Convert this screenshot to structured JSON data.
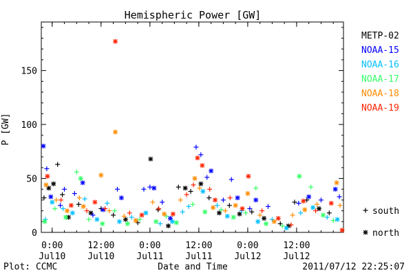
{
  "chart_data": {
    "type": "scatter",
    "title": "Hemispheric Power [GW]",
    "xlabel": "Date and Time",
    "ylabel": "P [GW]",
    "ylim": [
      0,
      195
    ],
    "xlim": [
      "2011-07-09T21:20",
      "2011-07-12T23:30"
    ],
    "y_ticks": [
      0,
      50,
      100,
      150
    ],
    "x_ticks": [
      {
        "time": "2011-07-10T00:00",
        "label": [
          "0:00",
          "Jul10"
        ]
      },
      {
        "time": "2011-07-10T12:00",
        "label": [
          "12:00",
          "Jul10"
        ]
      },
      {
        "time": "2011-07-11T00:00",
        "label": [
          "0:00",
          "Jul11"
        ]
      },
      {
        "time": "2011-07-11T12:00",
        "label": [
          "12:00",
          "Jul11"
        ]
      },
      {
        "time": "2011-07-12T00:00",
        "label": [
          "0:00",
          "Jul12"
        ]
      },
      {
        "time": "2011-07-12T12:00",
        "label": [
          "12:00",
          "Jul12"
        ]
      }
    ],
    "grid": false,
    "legend_position": "right",
    "markers": [
      {
        "symbol": "+",
        "label": "south"
      },
      {
        "symbol": "*",
        "label": "north"
      }
    ],
    "series": [
      {
        "name": "METP-02",
        "color": "#000000",
        "points": [
          [
            "2011-07-09T22:00",
            32,
            "s"
          ],
          [
            "2011-07-09T23:10",
            41,
            "n"
          ],
          [
            "2011-07-10T00:20",
            45,
            "n"
          ],
          [
            "2011-07-10T01:20",
            63,
            "s"
          ],
          [
            "2011-07-10T02:30",
            35,
            "s"
          ],
          [
            "2011-07-10T04:00",
            14,
            "n"
          ],
          [
            "2011-07-10T06:30",
            26,
            "s"
          ],
          [
            "2011-07-10T09:30",
            18,
            "n"
          ],
          [
            "2011-07-10T12:00",
            22,
            "s"
          ],
          [
            "2011-07-10T15:00",
            16,
            "s"
          ],
          [
            "2011-07-10T18:00",
            12,
            "n"
          ],
          [
            "2011-07-10T21:00",
            9,
            "s"
          ],
          [
            "2011-07-11T00:10",
            68,
            "n"
          ],
          [
            "2011-07-11T02:00",
            21,
            "s"
          ],
          [
            "2011-07-11T04:30",
            6,
            "n"
          ],
          [
            "2011-07-11T07:00",
            42,
            "s"
          ],
          [
            "2011-07-11T08:40",
            41,
            "n"
          ],
          [
            "2011-07-11T10:00",
            38,
            "s"
          ],
          [
            "2011-07-11T12:30",
            45,
            "n"
          ],
          [
            "2011-07-11T14:30",
            32,
            "s"
          ],
          [
            "2011-07-11T17:00",
            18,
            "n"
          ],
          [
            "2011-07-11T19:30",
            25,
            "s"
          ],
          [
            "2011-07-11T22:00",
            17,
            "n"
          ],
          [
            "2011-07-12T01:00",
            19,
            "s"
          ],
          [
            "2011-07-12T04:00",
            13,
            "n"
          ],
          [
            "2011-07-12T08:00",
            8,
            "s"
          ],
          [
            "2011-07-12T10:00",
            6,
            "n"
          ],
          [
            "2011-07-12T11:30",
            28,
            "s"
          ],
          [
            "2011-07-12T14:30",
            30,
            "s"
          ],
          [
            "2011-07-12T17:30",
            22,
            "n"
          ],
          [
            "2011-07-12T20:00",
            18,
            "s"
          ]
        ]
      },
      {
        "name": "NOAA-15",
        "color": "#0000ff",
        "points": [
          [
            "2011-07-09T21:50",
            80,
            "n"
          ],
          [
            "2011-07-09T22:40",
            59,
            "s"
          ],
          [
            "2011-07-09T23:40",
            33,
            "n"
          ],
          [
            "2011-07-10T02:00",
            25,
            "s"
          ],
          [
            "2011-07-10T03:00",
            40,
            "s"
          ],
          [
            "2011-07-10T05:30",
            36,
            "s"
          ],
          [
            "2011-07-10T07:30",
            46,
            "n"
          ],
          [
            "2011-07-10T10:00",
            16,
            "s"
          ],
          [
            "2011-07-10T12:30",
            21,
            "n"
          ],
          [
            "2011-07-10T16:00",
            40,
            "s"
          ],
          [
            "2011-07-10T17:00",
            32,
            "n"
          ],
          [
            "2011-07-10T22:30",
            40,
            "s"
          ],
          [
            "2011-07-11T00:00",
            42,
            "s"
          ],
          [
            "2011-07-11T01:00",
            41,
            "n"
          ],
          [
            "2011-07-11T03:00",
            28,
            "s"
          ],
          [
            "2011-07-11T05:00",
            13,
            "n"
          ],
          [
            "2011-07-11T11:20",
            79,
            "s"
          ],
          [
            "2011-07-11T12:30",
            72,
            "s"
          ],
          [
            "2011-07-11T14:00",
            51,
            "s"
          ],
          [
            "2011-07-11T15:00",
            57,
            "n"
          ],
          [
            "2011-07-11T18:00",
            30,
            "s"
          ],
          [
            "2011-07-11T20:00",
            49,
            "s"
          ],
          [
            "2011-07-11T21:30",
            32,
            "n"
          ],
          [
            "2011-07-12T00:30",
            22,
            "s"
          ],
          [
            "2011-07-12T02:00",
            30,
            "n"
          ],
          [
            "2011-07-12T05:00",
            24,
            "s"
          ],
          [
            "2011-07-12T12:30",
            27,
            "s"
          ],
          [
            "2011-07-12T15:00",
            33,
            "n"
          ],
          [
            "2011-07-12T18:00",
            30,
            "s"
          ],
          [
            "2011-07-12T21:30",
            40,
            "n"
          ],
          [
            "2011-07-12T22:30",
            33,
            "s"
          ]
        ]
      },
      {
        "name": "NOAA-16",
        "color": "#00bfff",
        "points": [
          [
            "2011-07-09T22:20",
            12,
            "s"
          ],
          [
            "2011-07-10T00:00",
            28,
            "n"
          ],
          [
            "2011-07-10T02:40",
            22,
            "s"
          ],
          [
            "2011-07-10T05:00",
            18,
            "n"
          ],
          [
            "2011-07-10T08:00",
            31,
            "s"
          ],
          [
            "2011-07-10T11:00",
            12,
            "n"
          ],
          [
            "2011-07-10T13:30",
            27,
            "s"
          ],
          [
            "2011-07-10T16:30",
            10,
            "n"
          ],
          [
            "2011-07-10T19:30",
            14,
            "s"
          ],
          [
            "2011-07-10T23:00",
            18,
            "n"
          ],
          [
            "2011-07-11T02:30",
            8,
            "s"
          ],
          [
            "2011-07-11T05:30",
            10,
            "n"
          ],
          [
            "2011-07-11T08:00",
            19,
            "s"
          ],
          [
            "2011-07-11T09:30",
            24,
            "s"
          ],
          [
            "2011-07-11T13:00",
            38,
            "n"
          ],
          [
            "2011-07-11T16:30",
            25,
            "s"
          ],
          [
            "2011-07-11T19:00",
            15,
            "n"
          ],
          [
            "2011-07-11T22:30",
            20,
            "s"
          ],
          [
            "2011-07-12T02:30",
            10,
            "n"
          ],
          [
            "2011-07-12T06:00",
            12,
            "s"
          ],
          [
            "2011-07-12T09:30",
            4,
            "n"
          ],
          [
            "2011-07-12T13:00",
            18,
            "s"
          ],
          [
            "2011-07-12T16:00",
            23,
            "n"
          ],
          [
            "2011-07-12T19:30",
            14,
            "s"
          ],
          [
            "2011-07-12T22:00",
            12,
            "n"
          ]
        ]
      },
      {
        "name": "NOAA-17",
        "color": "#33ff66",
        "points": [
          [
            "2011-07-09T22:10",
            10,
            "n"
          ],
          [
            "2011-07-10T00:40",
            22,
            "s"
          ],
          [
            "2011-07-10T03:20",
            14,
            "n"
          ],
          [
            "2011-07-10T06:00",
            56,
            "s"
          ],
          [
            "2011-07-10T07:00",
            50,
            "n"
          ],
          [
            "2011-07-10T09:00",
            12,
            "s"
          ],
          [
            "2011-07-10T12:20",
            8,
            "n"
          ],
          [
            "2011-07-10T15:20",
            20,
            "s"
          ],
          [
            "2011-07-10T18:30",
            8,
            "n"
          ],
          [
            "2011-07-10T21:30",
            12,
            "s"
          ],
          [
            "2011-07-11T01:30",
            10,
            "n"
          ],
          [
            "2011-07-11T04:00",
            15,
            "s"
          ],
          [
            "2011-07-11T06:30",
            9,
            "n"
          ],
          [
            "2011-07-11T10:30",
            26,
            "s"
          ],
          [
            "2011-07-11T13:30",
            19,
            "n"
          ],
          [
            "2011-07-11T17:30",
            21,
            "s"
          ],
          [
            "2011-07-11T20:30",
            14,
            "n"
          ],
          [
            "2011-07-11T23:30",
            18,
            "s"
          ],
          [
            "2011-07-12T02:00",
            41,
            "s"
          ],
          [
            "2011-07-12T04:30",
            8,
            "n"
          ],
          [
            "2011-07-12T08:30",
            6,
            "s"
          ],
          [
            "2011-07-12T12:40",
            52,
            "n"
          ],
          [
            "2011-07-12T15:30",
            42,
            "s"
          ],
          [
            "2011-07-12T18:30",
            16,
            "n"
          ],
          [
            "2011-07-12T21:00",
            11,
            "s"
          ]
        ]
      },
      {
        "name": "NOAA-18",
        "color": "#ff8c00",
        "points": [
          [
            "2011-07-09T22:30",
            44,
            "n"
          ],
          [
            "2011-07-10T01:00",
            30,
            "s"
          ],
          [
            "2011-07-10T03:40",
            20,
            "n"
          ],
          [
            "2011-07-10T06:40",
            32,
            "s"
          ],
          [
            "2011-07-10T07:40",
            24,
            "n"
          ],
          [
            "2011-07-10T12:00",
            53,
            "n"
          ],
          [
            "2011-07-10T14:00",
            20,
            "s"
          ],
          [
            "2011-07-10T15:30",
            93,
            "n"
          ],
          [
            "2011-07-10T17:40",
            15,
            "s"
          ],
          [
            "2011-07-10T20:30",
            11,
            "n"
          ],
          [
            "2011-07-11T00:40",
            28,
            "s"
          ],
          [
            "2011-07-11T03:30",
            17,
            "n"
          ],
          [
            "2011-07-11T07:30",
            30,
            "s"
          ],
          [
            "2011-07-11T11:00",
            50,
            "n"
          ],
          [
            "2011-07-11T12:10",
            41,
            "s"
          ],
          [
            "2011-07-11T15:30",
            23,
            "n"
          ],
          [
            "2011-07-11T18:30",
            20,
            "s"
          ],
          [
            "2011-07-11T21:00",
            25,
            "n"
          ],
          [
            "2011-07-12T00:00",
            36,
            "n"
          ],
          [
            "2011-07-12T03:00",
            16,
            "s"
          ],
          [
            "2011-07-12T06:30",
            10,
            "n"
          ],
          [
            "2011-07-12T11:00",
            16,
            "s"
          ],
          [
            "2011-07-12T14:00",
            21,
            "n"
          ],
          [
            "2011-07-12T17:00",
            26,
            "s"
          ],
          [
            "2011-07-12T21:50",
            46,
            "n"
          ],
          [
            "2011-07-12T22:40",
            25,
            "s"
          ]
        ]
      },
      {
        "name": "NOAA-19",
        "color": "#ff2200",
        "points": [
          [
            "2011-07-09T22:50",
            52,
            "n"
          ],
          [
            "2011-07-10T02:10",
            30,
            "s"
          ],
          [
            "2011-07-10T04:40",
            25,
            "n"
          ],
          [
            "2011-07-10T08:30",
            20,
            "s"
          ],
          [
            "2011-07-10T10:30",
            28,
            "n"
          ],
          [
            "2011-07-10T13:00",
            22,
            "s"
          ],
          [
            "2011-07-10T15:30",
            177,
            "n"
          ],
          [
            "2011-07-10T19:00",
            18,
            "s"
          ],
          [
            "2011-07-10T22:00",
            16,
            "n"
          ],
          [
            "2011-07-11T02:10",
            22,
            "s"
          ],
          [
            "2011-07-11T05:40",
            17,
            "n"
          ],
          [
            "2011-07-11T09:00",
            35,
            "s"
          ],
          [
            "2011-07-11T10:40",
            44,
            "s"
          ],
          [
            "2011-07-11T11:40",
            69,
            "n"
          ],
          [
            "2011-07-11T12:50",
            62,
            "n"
          ],
          [
            "2011-07-11T14:40",
            40,
            "s"
          ],
          [
            "2011-07-11T16:00",
            30,
            "n"
          ],
          [
            "2011-07-11T19:40",
            32,
            "s"
          ],
          [
            "2011-07-11T22:40",
            22,
            "n"
          ],
          [
            "2011-07-12T00:10",
            52,
            "n"
          ],
          [
            "2011-07-12T03:30",
            20,
            "s"
          ],
          [
            "2011-07-12T07:30",
            13,
            "n"
          ],
          [
            "2011-07-12T10:40",
            7,
            "s"
          ],
          [
            "2011-07-12T13:40",
            29,
            "n"
          ],
          [
            "2011-07-12T16:40",
            20,
            "s"
          ],
          [
            "2011-07-12T20:30",
            27,
            "n"
          ],
          [
            "2011-07-12T23:10",
            2,
            "n"
          ]
        ]
      }
    ]
  },
  "footer": {
    "left": "Plot: CCMC",
    "right": "2011/07/12 22:25:07"
  }
}
